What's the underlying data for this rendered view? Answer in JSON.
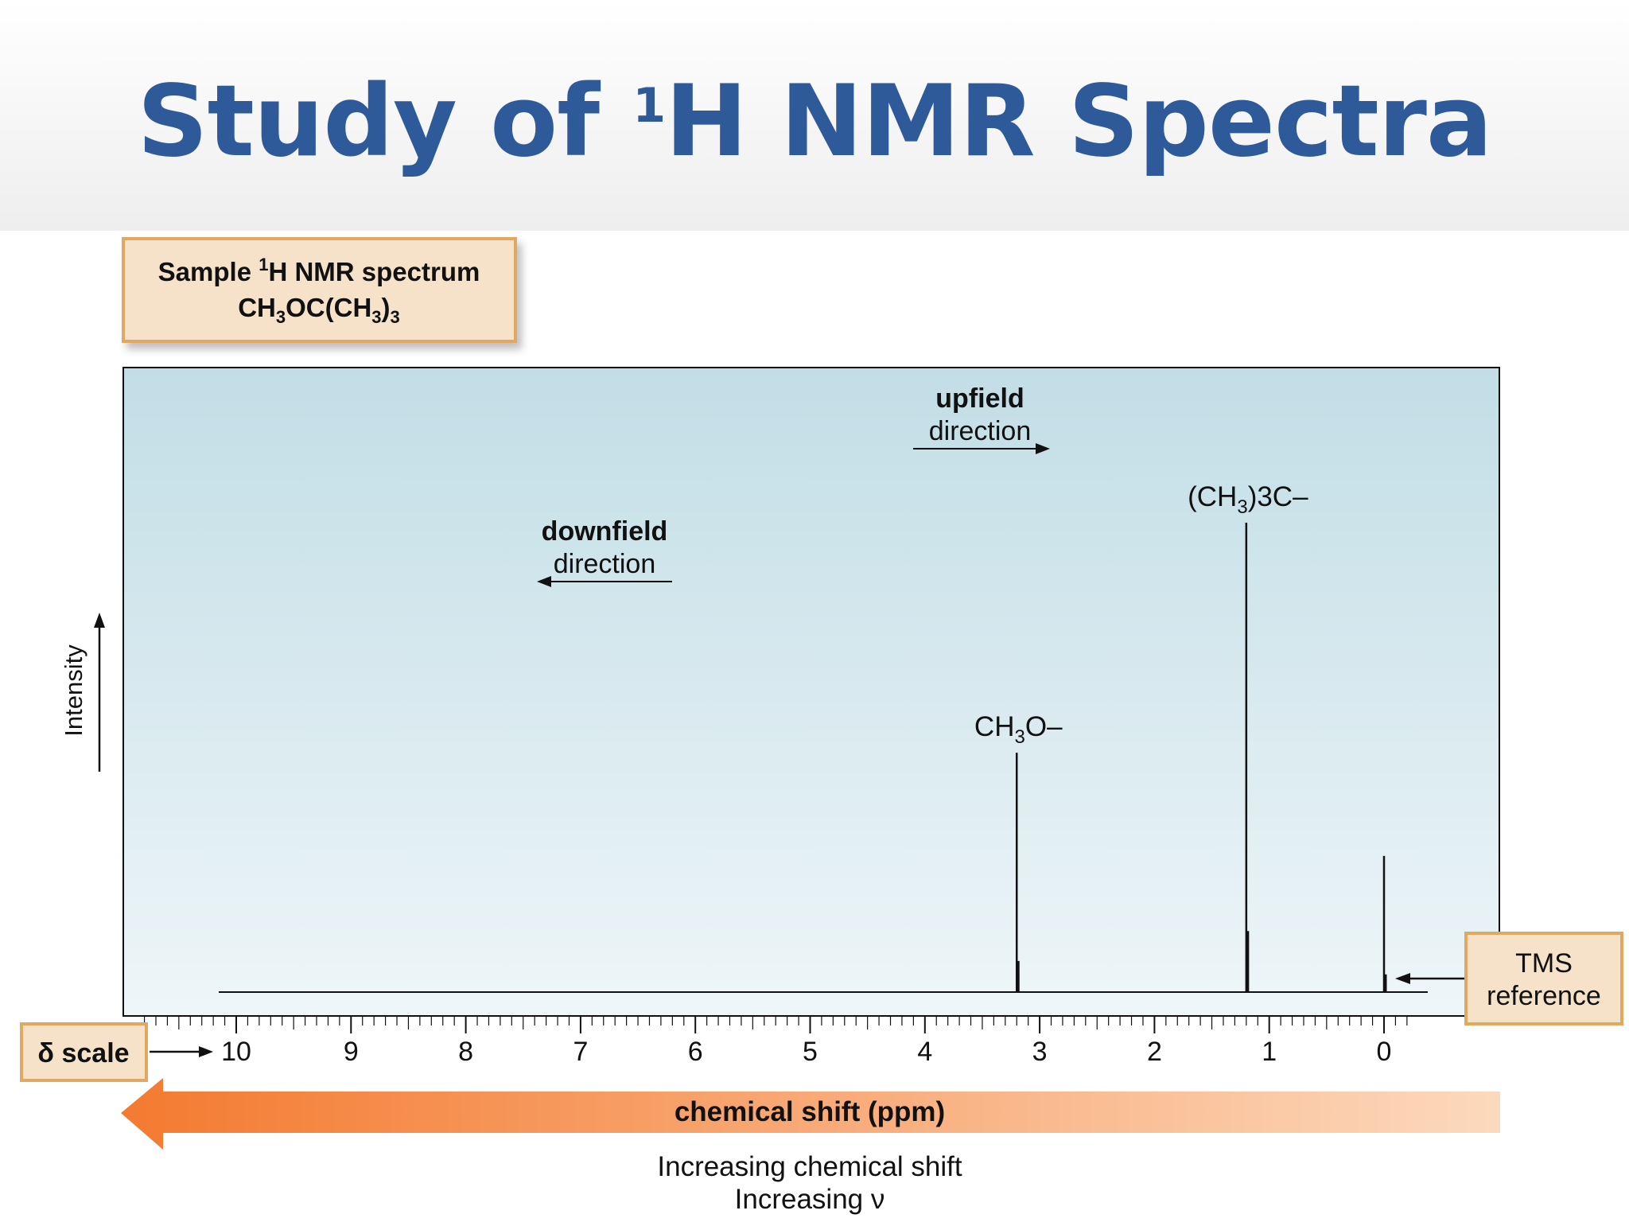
{
  "slide": {
    "title_main": "Study of ",
    "title_sup": "1",
    "title_rest": "H NMR Spectra"
  },
  "sample_box": {
    "line1_pre": "Sample ",
    "line1_sup": "1",
    "line1_post": "H NMR spectrum",
    "formula_a": "CH",
    "formula_sub1": "3",
    "formula_b": "OC(CH",
    "formula_sub2": "3",
    "formula_c": ")",
    "formula_sub3": "3"
  },
  "labels": {
    "upfield_bold": "upfield",
    "upfield_dir": "direction",
    "downfield_bold": "downfield",
    "downfield_dir": "direction",
    "tms_line1": "TMS",
    "tms_line2": "reference",
    "delta_scale": "δ scale",
    "bar_label": "chemical shift (ppm)",
    "footer_line1": "Increasing chemical shift",
    "footer_line2": "Increasing ν"
  },
  "colors": {
    "title": "#2e5a99",
    "plot_bg_top": "#c2dde6",
    "plot_bg_bottom": "#eef6f8",
    "box_fill": "#f6e2c8",
    "box_border": "#e0a860",
    "arrow_dark": "#f47a30",
    "arrow_light": "#fcd9bd"
  },
  "chart_data": {
    "type": "line",
    "title": "",
    "xlabel": "chemical shift (ppm)",
    "ylabel": "Intensity",
    "xlim": [
      11.0,
      -1.0
    ],
    "x_reversed": true,
    "ylim": [
      0,
      1
    ],
    "xticks": [
      10,
      9,
      8,
      7,
      6,
      5,
      4,
      3,
      2,
      1,
      0
    ],
    "xtick_labels": [
      "10",
      "9",
      "8",
      "7",
      "6",
      "5",
      "4",
      "3",
      "2",
      "1",
      "0"
    ],
    "grid": false,
    "series": [
      {
        "name": "",
        "peaks": [
          {
            "label_pre": "CH",
            "label_sub": "3",
            "label_post": "O–",
            "x": 3.2,
            "y": 0.51
          },
          {
            "label_pre": "(CH",
            "label_sub": "3",
            "label_post": ")3C–",
            "x": 1.2,
            "y": 1.0
          },
          {
            "label_pre": "",
            "label_sub": "",
            "label_post": "",
            "x": 0.0,
            "y": 0.29
          }
        ]
      }
    ]
  }
}
